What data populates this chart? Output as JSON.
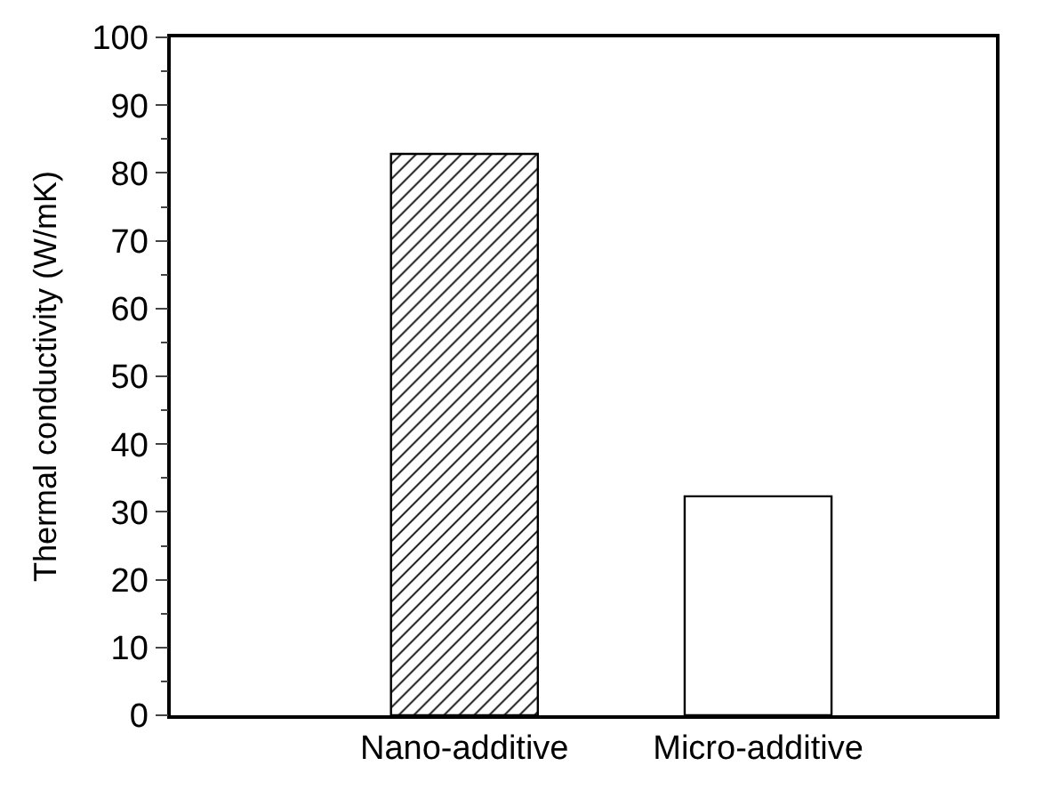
{
  "chart_data": {
    "type": "bar",
    "ylabel": "Thermal conductivity (W/mK)",
    "categories": [
      "Nano-additive",
      "Micro-additive"
    ],
    "values": [
      82.8,
      32.3
    ],
    "colors": [
      "#000000",
      "#ffffff"
    ],
    "ylim": [
      0,
      100
    ],
    "yticks": [
      0,
      10,
      20,
      30,
      40,
      50,
      60,
      70,
      80,
      90,
      100
    ]
  }
}
